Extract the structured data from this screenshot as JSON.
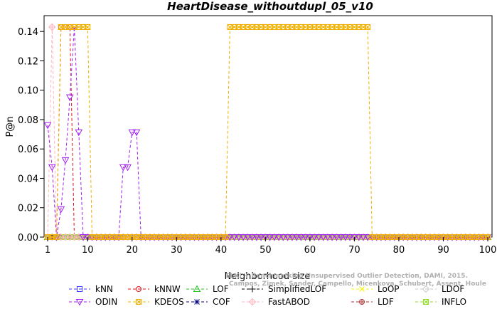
{
  "chart_data": {
    "type": "line",
    "title": "HeartDisease_withoutdupl_05_v10",
    "xlabel": "Neighborhood size",
    "ylabel": "P@n",
    "xlim": [
      1,
      100
    ],
    "ylim": [
      0,
      0.143
    ],
    "xticks": [
      1,
      10,
      20,
      30,
      40,
      50,
      60,
      70,
      80,
      90,
      100
    ],
    "yticks": [
      0.0,
      0.02,
      0.04,
      0.06,
      0.08,
      0.1,
      0.12,
      0.14
    ],
    "ytick_labels": [
      "0.00",
      "0.02",
      "0.04",
      "0.06",
      "0.08",
      "0.10",
      "0.12",
      "0.14"
    ],
    "grid": false,
    "legend_position": "bottom",
    "watermark": {
      "line1": "ELKI + Benchmarking Unsupervised Outlier Detection, DAMI, 2015.",
      "line2": "Campos, Zimek, Sander, Campello, Micenkova, Schubert, Assent, Houle"
    },
    "series": [
      {
        "name": "kNN",
        "color": "#3b3bff",
        "marker": "square",
        "x": [
          1,
          100
        ],
        "y": [
          0,
          0
        ]
      },
      {
        "name": "kNNW",
        "color": "#e01010",
        "marker": "circle",
        "x": [
          1,
          3,
          4,
          5,
          6,
          7,
          100
        ],
        "y": [
          0,
          0,
          0.143,
          0.143,
          0.143,
          0,
          0
        ]
      },
      {
        "name": "LOF",
        "color": "#20c020",
        "marker": "triangle-up",
        "x": [
          1,
          100
        ],
        "y": [
          0,
          0
        ]
      },
      {
        "name": "SimplifiedLOF",
        "color": "#000000",
        "marker": "plus",
        "x": [
          1,
          100
        ],
        "y": [
          0,
          0
        ]
      },
      {
        "name": "LoOP",
        "color": "#f5f500",
        "marker": "x",
        "x": [
          1,
          100
        ],
        "y": [
          0,
          0
        ]
      },
      {
        "name": "LDOF",
        "color": "#c8c8c8",
        "marker": "diamond",
        "x": [
          1,
          100
        ],
        "y": [
          0,
          0
        ]
      },
      {
        "name": "ODIN",
        "color": "#a020f0",
        "marker": "triangle-down",
        "x": [
          1,
          2,
          3,
          4,
          5,
          6,
          7,
          8,
          9,
          17,
          18,
          19,
          20,
          21,
          22,
          100
        ],
        "y": [
          0.0762,
          0.0476,
          0,
          0.019,
          0.0524,
          0.0952,
          0.143,
          0.0714,
          0,
          0,
          0.0476,
          0.0476,
          0.0714,
          0.0714,
          0,
          0
        ]
      },
      {
        "name": "KDEOS",
        "color": "#f0b000",
        "marker": "square-x",
        "x": [
          1,
          2,
          3,
          4,
          5,
          6,
          7,
          8,
          9,
          10,
          11,
          41,
          42,
          43,
          44,
          45,
          46,
          47,
          48,
          49,
          50,
          51,
          52,
          53,
          54,
          55,
          56,
          57,
          58,
          59,
          60,
          61,
          62,
          63,
          64,
          65,
          66,
          67,
          68,
          69,
          70,
          71,
          72,
          73,
          74,
          100
        ],
        "y": [
          0,
          0,
          0,
          0.143,
          0.143,
          0.143,
          0.143,
          0.143,
          0.143,
          0.143,
          0,
          0,
          0.143,
          0.143,
          0.143,
          0.143,
          0.143,
          0.143,
          0.143,
          0.143,
          0.143,
          0.143,
          0.143,
          0.143,
          0.143,
          0.143,
          0.143,
          0.143,
          0.143,
          0.143,
          0.143,
          0.143,
          0.143,
          0.143,
          0.143,
          0.143,
          0.143,
          0.143,
          0.143,
          0.143,
          0.143,
          0.143,
          0.143,
          0.143,
          0,
          0
        ]
      },
      {
        "name": "COF",
        "color": "#000080",
        "marker": "asterisk",
        "x": [
          1,
          100
        ],
        "y": [
          0,
          0
        ]
      },
      {
        "name": "FastABOD",
        "color": "#ffb6c1",
        "marker": "diamond-plus",
        "x": [
          1,
          2,
          3,
          100
        ],
        "y": [
          0,
          0.143,
          0,
          0
        ]
      },
      {
        "name": "LDF",
        "color": "#b03030",
        "marker": "circle-plus",
        "x": [
          1,
          100
        ],
        "y": [
          0,
          0
        ]
      },
      {
        "name": "INFLO",
        "color": "#90e020",
        "marker": "square-x",
        "x": [
          1,
          100
        ],
        "y": [
          0,
          0
        ]
      }
    ]
  }
}
